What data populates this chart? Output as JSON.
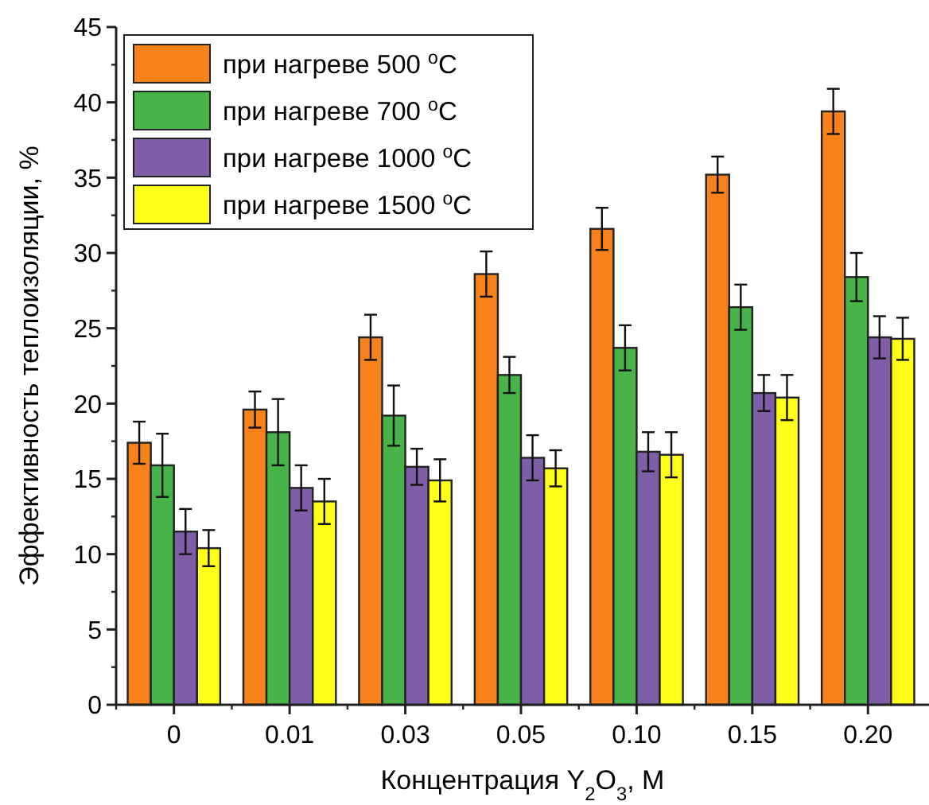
{
  "chart_data": {
    "type": "bar",
    "xlabel": "Концентрация Y$_{2}$O$_{3}$, M",
    "ylabel": "Эффективность теплоизоляции, %",
    "categories": [
      "0",
      "0.01",
      "0.03",
      "0.05",
      "0.10",
      "0.15",
      "0.20"
    ],
    "series": [
      {
        "name": "при нагреве 500 $^{o}$C",
        "color": "#f7821b",
        "values": [
          17.4,
          19.6,
          24.4,
          28.6,
          31.6,
          35.2,
          39.4
        ],
        "errors": [
          1.4,
          1.2,
          1.5,
          1.5,
          1.4,
          1.2,
          1.5
        ]
      },
      {
        "name": "при нагреве 700 $^{o}$C",
        "color": "#47b349",
        "values": [
          15.9,
          18.1,
          19.2,
          21.9,
          23.7,
          26.4,
          28.4
        ],
        "errors": [
          2.1,
          2.2,
          2.0,
          1.2,
          1.5,
          1.5,
          1.6
        ]
      },
      {
        "name": "при нагреве 1000 $^{o}$C",
        "color": "#7f5ea8",
        "values": [
          11.5,
          14.4,
          15.8,
          16.4,
          16.8,
          20.7,
          24.4
        ],
        "errors": [
          1.5,
          1.5,
          1.2,
          1.5,
          1.3,
          1.2,
          1.4
        ]
      },
      {
        "name": "при нагреве 1500 $^{o}$C",
        "color": "#ffff1a",
        "values": [
          10.4,
          13.5,
          14.9,
          15.7,
          16.6,
          20.4,
          24.3
        ],
        "errors": [
          1.2,
          1.5,
          1.4,
          1.2,
          1.5,
          1.5,
          1.4
        ]
      }
    ],
    "ylim": [
      0,
      45
    ],
    "yticks": [
      0,
      5,
      10,
      15,
      20,
      25,
      30,
      35,
      40,
      45
    ],
    "legend": "top left",
    "grid": false
  }
}
